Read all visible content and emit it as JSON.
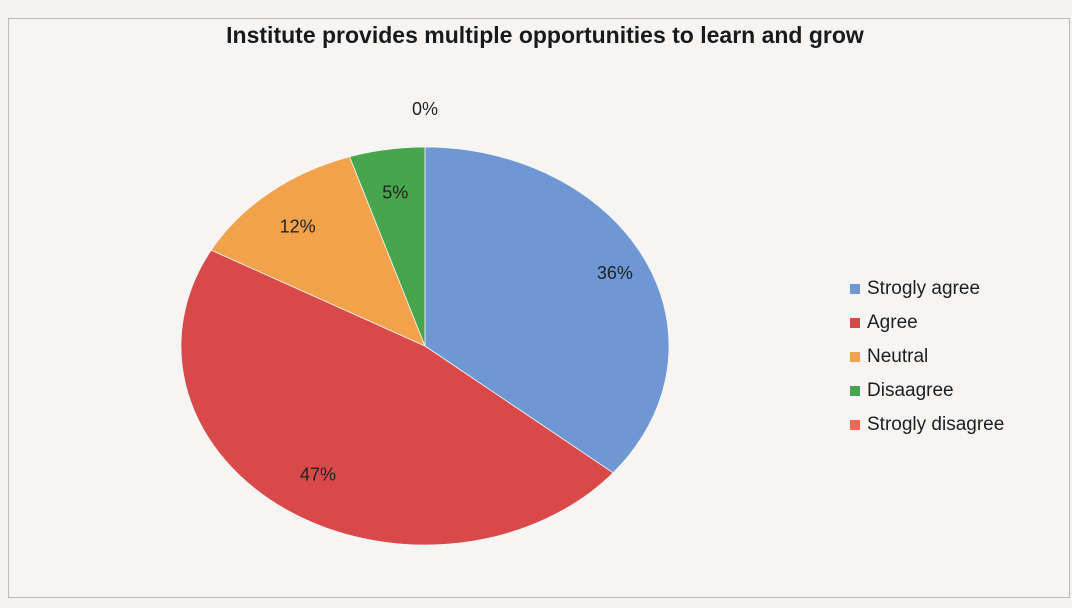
{
  "chart_data": {
    "type": "pie",
    "title": "Institute provides multiple opportunities to learn and grow",
    "categories": [
      "Strogly agree",
      "Agree",
      "Neutral",
      "Disaagree",
      "Strogly disagree"
    ],
    "values": [
      36,
      47,
      12,
      5,
      0
    ],
    "data_labels": [
      "36%",
      "47%",
      "12%",
      "5%",
      "0%"
    ],
    "colors": [
      "#6e97d3",
      "#d9494a",
      "#f2a24a",
      "#47a54e",
      "#ee6a55"
    ],
    "legend_position": "right"
  }
}
